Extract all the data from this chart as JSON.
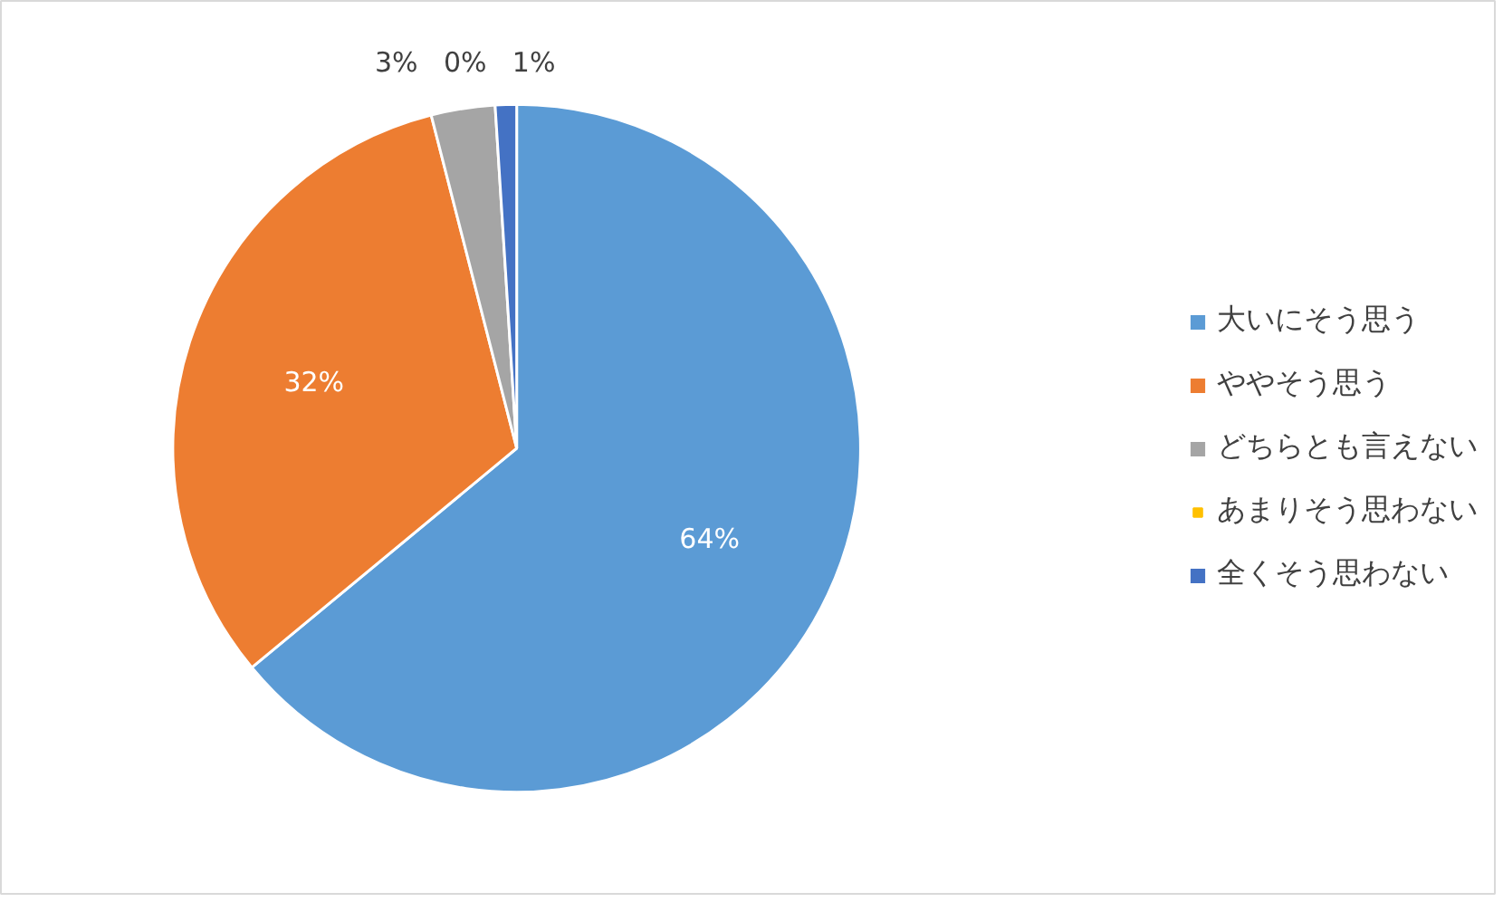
{
  "chart_data": {
    "type": "pie",
    "categories": [
      "大いにそう思う",
      "ややそう思う",
      "どちらとも言えない",
      "あまりそう思わない",
      "全くそう思わない"
    ],
    "values": [
      64,
      32,
      3,
      0,
      1
    ],
    "value_labels": [
      "64%",
      "32%",
      "3%",
      "0%",
      "1%"
    ],
    "colors": [
      "#5b9bd5",
      "#ed7d31",
      "#a5a5a5",
      "#ffc000",
      "#4472c4"
    ],
    "legend": "right"
  }
}
